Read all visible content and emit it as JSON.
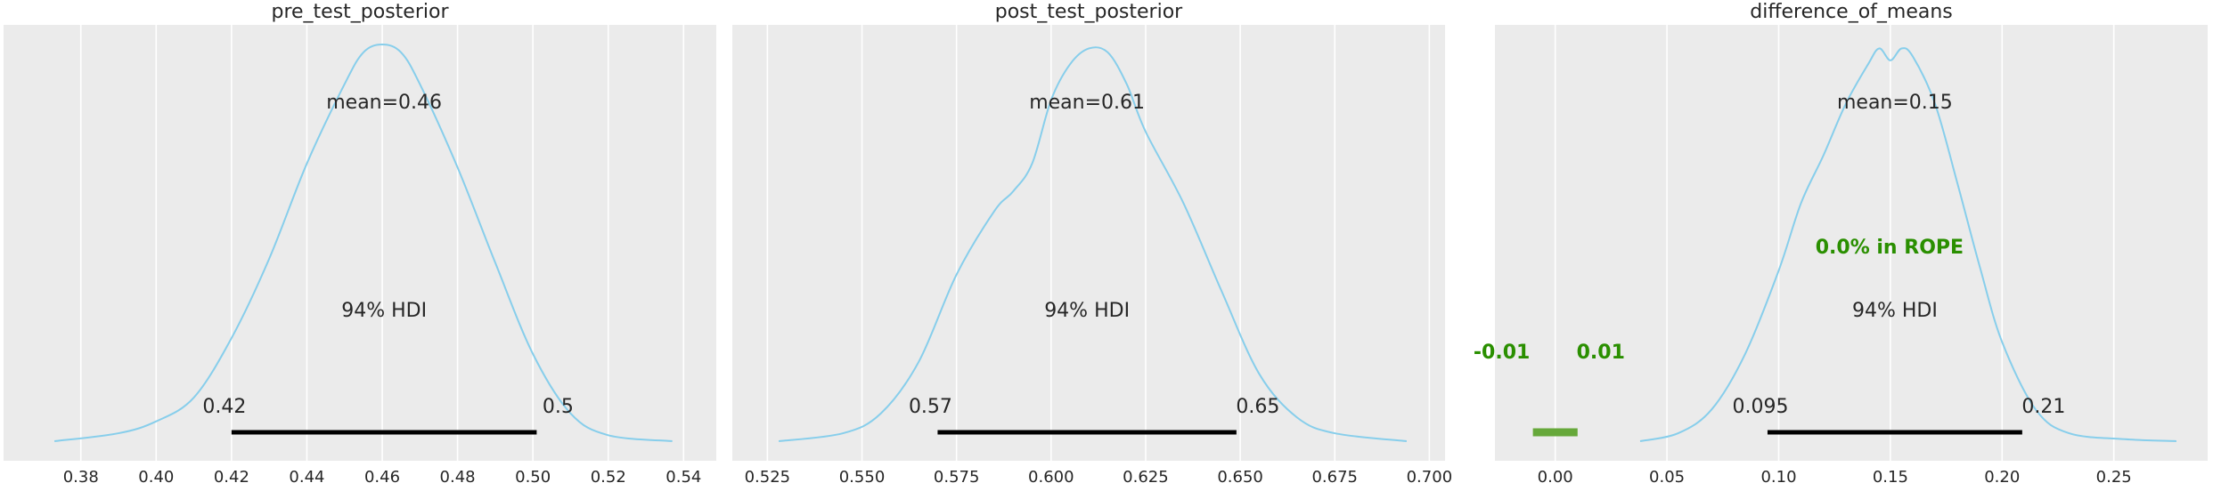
{
  "colors": {
    "background": "#ebebeb",
    "grid": "#ffffff",
    "kde_line": "#87ceeb",
    "hdi_bar": "#000000",
    "rope_text": "#2a8f00",
    "rope_bar": "#66a83a",
    "text": "#262626"
  },
  "chart_data": [
    {
      "type": "line",
      "title": "pre_test_posterior",
      "xlim": [
        0.368,
        0.543
      ],
      "xticks": [
        0.38,
        0.4,
        0.42,
        0.44,
        0.46,
        0.48,
        0.5,
        0.52,
        0.54
      ],
      "xtick_labels": [
        "0.38",
        "0.40",
        "0.42",
        "0.44",
        "0.46",
        "0.48",
        "0.50",
        "0.52",
        "0.54"
      ],
      "grid": true,
      "kde": {
        "x": [
          0.373,
          0.39,
          0.4,
          0.41,
          0.42,
          0.43,
          0.44,
          0.45,
          0.455,
          0.46,
          0.465,
          0.47,
          0.48,
          0.49,
          0.5,
          0.51,
          0.52,
          0.537
        ],
        "density": [
          0.0,
          0.02,
          0.05,
          0.11,
          0.26,
          0.46,
          0.7,
          0.9,
          0.98,
          1.0,
          0.98,
          0.9,
          0.69,
          0.45,
          0.22,
          0.07,
          0.015,
          0.0
        ]
      },
      "mean_label": "mean=0.46",
      "hdi_label": "94% HDI",
      "hdi": [
        0.42,
        0.501
      ],
      "hdi_low_label": "0.42",
      "hdi_high_label": "0.5"
    },
    {
      "type": "line",
      "title": "post_test_posterior",
      "xlim": [
        0.5235,
        0.7025
      ],
      "xticks": [
        0.525,
        0.55,
        0.575,
        0.6,
        0.625,
        0.65,
        0.675,
        0.7
      ],
      "xtick_labels": [
        "0.525",
        "0.550",
        "0.575",
        "0.600",
        "0.625",
        "0.650",
        "0.675",
        "0.700"
      ],
      "grid": true,
      "kde": {
        "x": [
          0.528,
          0.545,
          0.555,
          0.565,
          0.575,
          0.585,
          0.59,
          0.595,
          0.6,
          0.605,
          0.61,
          0.615,
          0.62,
          0.625,
          0.635,
          0.645,
          0.655,
          0.665,
          0.675,
          0.694
        ],
        "density": [
          0.0,
          0.02,
          0.07,
          0.2,
          0.42,
          0.58,
          0.63,
          0.7,
          0.86,
          0.95,
          0.99,
          0.98,
          0.9,
          0.78,
          0.6,
          0.38,
          0.17,
          0.06,
          0.02,
          0.0
        ]
      },
      "mean_label": "mean=0.61",
      "hdi_label": "94% HDI",
      "hdi": [
        0.57,
        0.649
      ],
      "hdi_low_label": "0.57",
      "hdi_high_label": "0.65"
    },
    {
      "type": "line",
      "title": "difference_of_means",
      "xlim": [
        -0.025,
        0.29
      ],
      "xticks": [
        0.0,
        0.05,
        0.1,
        0.15,
        0.2,
        0.25
      ],
      "xtick_labels": [
        "0.00",
        "0.05",
        "0.10",
        "0.15",
        "0.20",
        "0.25"
      ],
      "grid": true,
      "kde": {
        "x": [
          0.038,
          0.055,
          0.07,
          0.085,
          0.1,
          0.11,
          0.12,
          0.13,
          0.14,
          0.145,
          0.15,
          0.155,
          0.16,
          0.17,
          0.18,
          0.19,
          0.2,
          0.215,
          0.23,
          0.255,
          0.278
        ],
        "density": [
          0.0,
          0.02,
          0.08,
          0.22,
          0.43,
          0.6,
          0.72,
          0.85,
          0.95,
          0.99,
          0.96,
          0.99,
          0.97,
          0.85,
          0.65,
          0.44,
          0.25,
          0.08,
          0.02,
          0.005,
          0.0
        ]
      },
      "mean_label": "mean=0.15",
      "hdi_label": "94% HDI",
      "hdi": [
        0.095,
        0.209
      ],
      "hdi_low_label": "0.095",
      "hdi_high_label": "0.21",
      "rope": [
        -0.01,
        0.01
      ],
      "rope_label": "0.0% in ROPE",
      "rope_low_label": "-0.01",
      "rope_high_label": "0.01"
    }
  ]
}
